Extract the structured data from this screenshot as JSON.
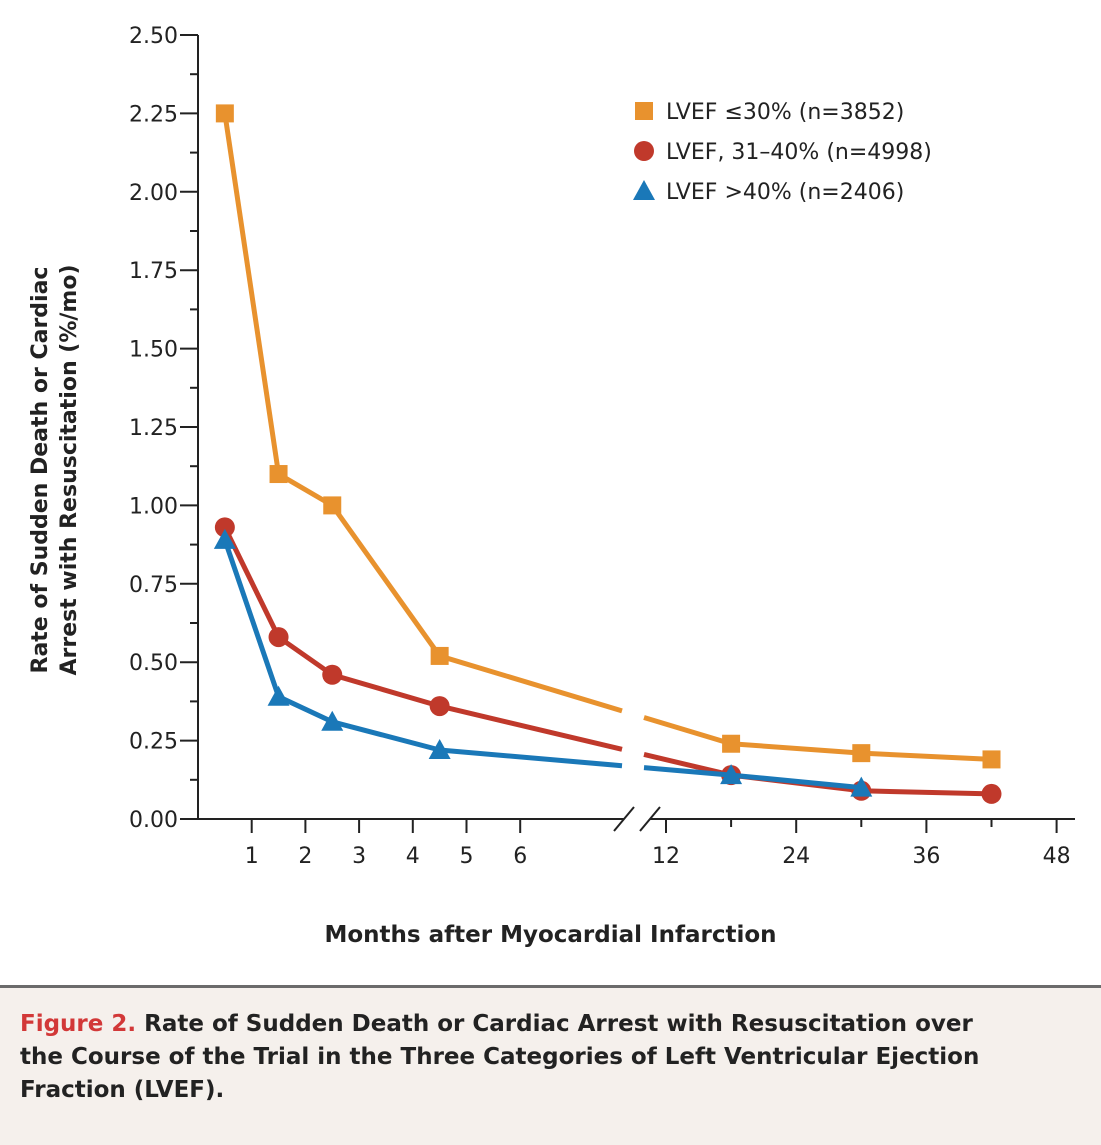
{
  "chart_data": {
    "type": "line",
    "ylabel_line1": "Rate of Sudden Death or Cardiac",
    "ylabel_line2": "Arrest with Resuscitation (%/mo)",
    "xlabel": "Months after Myocardial Infarction",
    "ylim": [
      0,
      2.5
    ],
    "yticks": [
      "0.00",
      "0.25",
      "0.50",
      "0.75",
      "1.00",
      "1.25",
      "1.50",
      "1.75",
      "2.00",
      "2.25",
      "2.50"
    ],
    "xticks": [
      "1",
      "2",
      "3",
      "4",
      "5",
      "6",
      "12",
      "24",
      "36",
      "48"
    ],
    "x_axis_break": "between 6 and 12 months",
    "grid": false,
    "legend_position": "top-right",
    "series": [
      {
        "name": "LVEF ≤30% (n=3852)",
        "marker": "square",
        "color": "#e8922e",
        "x": [
          0.5,
          1.5,
          2.5,
          4.5,
          18,
          30,
          42
        ],
        "y": [
          2.25,
          1.1,
          1.0,
          0.52,
          0.24,
          0.21,
          0.19
        ]
      },
      {
        "name": "LVEF, 31–40% (n=4998)",
        "marker": "circle",
        "color": "#c0392b",
        "x": [
          0.5,
          1.5,
          2.5,
          4.5,
          18,
          30,
          42
        ],
        "y": [
          0.93,
          0.58,
          0.46,
          0.36,
          0.14,
          0.09,
          0.08
        ]
      },
      {
        "name": "LVEF >40% (n=2406)",
        "marker": "triangle",
        "color": "#1a78b8",
        "x": [
          0.5,
          1.5,
          2.5,
          4.5,
          18,
          30
        ],
        "y": [
          0.89,
          0.39,
          0.31,
          0.22,
          0.14,
          0.1
        ]
      }
    ]
  },
  "caption": {
    "label": "Figure 2.",
    "text": "Rate of Sudden Death or Cardiac Arrest with Resuscitation over the Course of the Trial in the Three Categories of Left Ventricular Ejection Fraction (LVEF)."
  }
}
